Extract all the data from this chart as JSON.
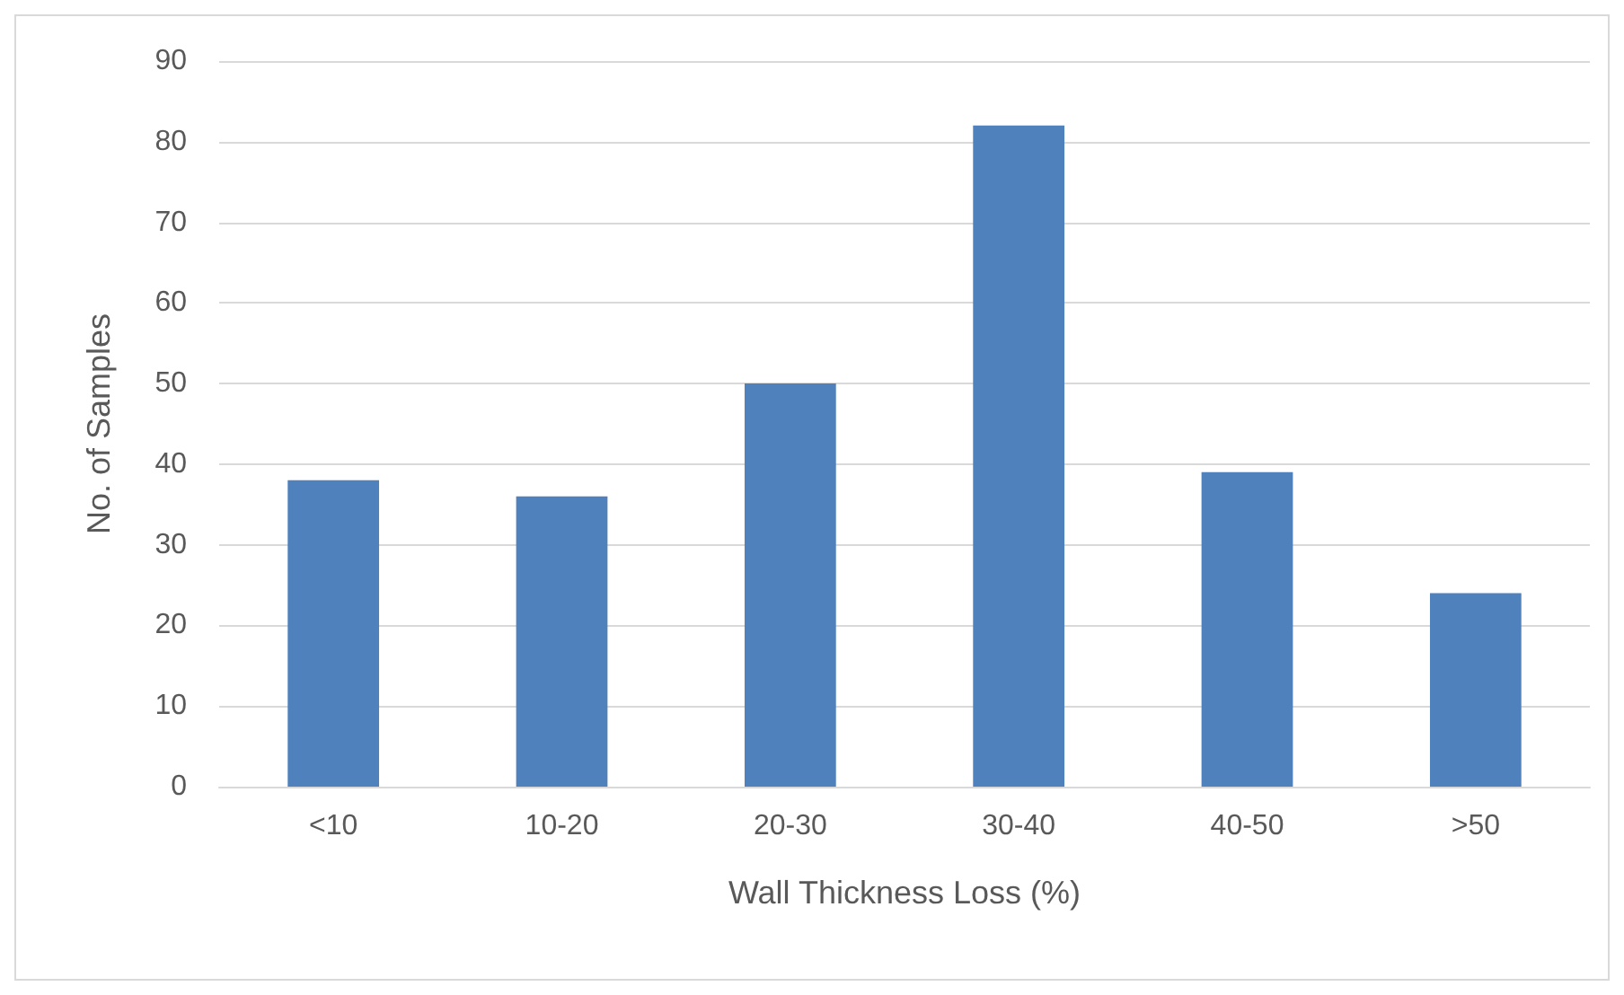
{
  "chart_data": {
    "type": "bar",
    "xlabel": "Wall Thickness Loss (%)",
    "ylabel": "No. of Samples",
    "categories": [
      "<10",
      "10-20",
      "20-30",
      "30-40",
      "40-50",
      ">50"
    ],
    "values": [
      38,
      36,
      50,
      82,
      39,
      24
    ],
    "color": "#4f81bd",
    "ylim": [
      0,
      90
    ],
    "yticks": [
      0,
      10,
      20,
      30,
      40,
      50,
      60,
      70,
      80,
      90
    ],
    "grid": "y"
  }
}
